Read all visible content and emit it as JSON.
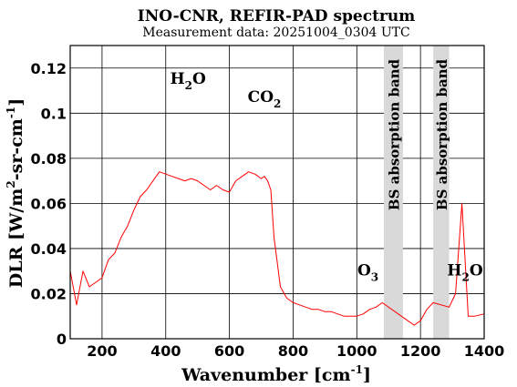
{
  "chart_data": {
    "type": "line",
    "title": "INO-CNR, REFIR-PAD spectrum",
    "subtitle": "Measurement data: 20251004_0304 UTC",
    "xlabel": {
      "base": "Wavenumber [cm",
      "sup": "-1",
      "tail": "]"
    },
    "ylabel": {
      "p1": "DLR [W/m",
      "sup1": "2",
      "p2": "-sr-cm",
      "sup2": "-1",
      "tail": "]"
    },
    "xlim": [
      100,
      1400
    ],
    "ylim": [
      0,
      0.13
    ],
    "xticks": [
      {
        "value": 200,
        "label": "200"
      },
      {
        "value": 400,
        "label": "400"
      },
      {
        "value": 600,
        "label": "600"
      },
      {
        "value": 800,
        "label": "800"
      },
      {
        "value": 1000,
        "label": "1000"
      },
      {
        "value": 1200,
        "label": "1200"
      },
      {
        "value": 1400,
        "label": "1400"
      }
    ],
    "yticks": [
      {
        "value": 0,
        "label": "0"
      },
      {
        "value": 0.02,
        "label": "0.02"
      },
      {
        "value": 0.04,
        "label": "0.04"
      },
      {
        "value": 0.06,
        "label": "0.06"
      },
      {
        "value": 0.08,
        "label": "0.08"
      },
      {
        "value": 0.1,
        "label": "0.1"
      },
      {
        "value": 0.12,
        "label": "0.12"
      }
    ],
    "grid": true,
    "line_color": "#ff0000",
    "band_color": "#d9d9d9",
    "absorption_bands": [
      {
        "x0": 1085,
        "x1": 1145,
        "label": "BS absorption band"
      },
      {
        "x0": 1240,
        "x1": 1290,
        "label": "BS absorption band"
      }
    ],
    "annotations": [
      {
        "base": "H",
        "sub": "2",
        "tail": "O",
        "x": 470,
        "y": 0.113
      },
      {
        "base": "CO",
        "sub": "2",
        "tail": "",
        "x": 710,
        "y": 0.105
      },
      {
        "base": "O",
        "sub": "3",
        "tail": "",
        "x": 1035,
        "y": 0.028
      },
      {
        "base": "H",
        "sub": "2",
        "tail": "O",
        "x": 1340,
        "y": 0.028
      }
    ],
    "series": [
      {
        "x": [
          100,
          120,
          140,
          160,
          180,
          200,
          220,
          240,
          260,
          280,
          300,
          320,
          340,
          360,
          380,
          400,
          420,
          440,
          460,
          480,
          500,
          520,
          540,
          560,
          580,
          600,
          620,
          640,
          660,
          680,
          700,
          710,
          720,
          730,
          740,
          760,
          780,
          800,
          820,
          840,
          860,
          880,
          900,
          920,
          940,
          960,
          980,
          1000,
          1020,
          1040,
          1060,
          1080,
          1150,
          1180,
          1200,
          1220,
          1240,
          1290,
          1310,
          1330,
          1350,
          1370,
          1400
        ],
        "y": [
          0.03,
          0.015,
          0.03,
          0.023,
          0.025,
          0.027,
          0.035,
          0.038,
          0.045,
          0.05,
          0.057,
          0.063,
          0.066,
          0.07,
          0.074,
          0.073,
          0.072,
          0.071,
          0.07,
          0.071,
          0.07,
          0.068,
          0.066,
          0.068,
          0.066,
          0.065,
          0.07,
          0.072,
          0.074,
          0.073,
          0.071,
          0.072,
          0.07,
          0.066,
          0.045,
          0.023,
          0.018,
          0.016,
          0.015,
          0.014,
          0.013,
          0.013,
          0.012,
          0.012,
          0.011,
          0.01,
          0.01,
          0.01,
          0.011,
          0.013,
          0.014,
          0.016,
          0.009,
          0.006,
          0.008,
          0.013,
          0.016,
          0.014,
          0.02,
          0.06,
          0.01,
          0.01,
          0.011
        ]
      }
    ]
  }
}
